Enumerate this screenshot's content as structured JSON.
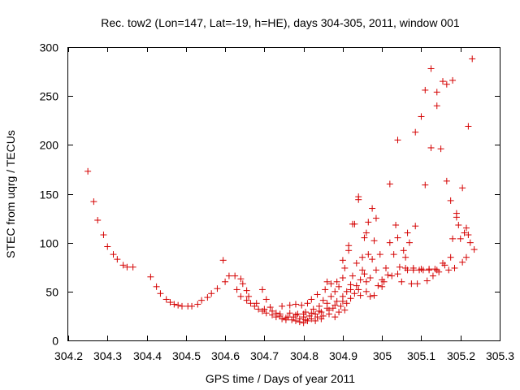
{
  "chart_data": {
    "type": "scatter",
    "title": "Rec. tow2 (Lon=147, Lat=-19, h=HE), days 304-305, 2011, window 001",
    "xlabel": "GPS time / Days of year 2011",
    "ylabel": "STEC from uqrg / TECUs",
    "xlim": [
      304.2,
      305.3
    ],
    "ylim": [
      0,
      300
    ],
    "xticks": [
      304.2,
      304.3,
      304.4,
      304.5,
      304.6,
      304.7,
      304.8,
      304.9,
      305,
      305.1,
      305.2,
      305.3
    ],
    "xtick_labels": [
      "304.2",
      "304.3",
      "304.4",
      "304.5",
      "304.6",
      "304.7",
      "304.8",
      "304.9",
      "305",
      "305.1",
      "305.2",
      "305.3"
    ],
    "yticks": [
      0,
      50,
      100,
      150,
      200,
      250,
      300
    ],
    "ytick_labels": [
      "0",
      "50",
      "100",
      "150",
      "200",
      "250",
      "300"
    ],
    "grid": false,
    "marker": "+",
    "marker_color": "#d40000",
    "points": [
      [
        304.25,
        173
      ],
      [
        304.265,
        142
      ],
      [
        304.275,
        123
      ],
      [
        304.29,
        108
      ],
      [
        304.3,
        96
      ],
      [
        304.315,
        88
      ],
      [
        304.325,
        83
      ],
      [
        304.34,
        77
      ],
      [
        304.35,
        75
      ],
      [
        304.365,
        75
      ],
      [
        304.41,
        65
      ],
      [
        304.425,
        55
      ],
      [
        304.435,
        48
      ],
      [
        304.45,
        42
      ],
      [
        304.46,
        39
      ],
      [
        304.47,
        37
      ],
      [
        304.48,
        36
      ],
      [
        304.49,
        35
      ],
      [
        304.505,
        35
      ],
      [
        304.515,
        35
      ],
      [
        304.53,
        37
      ],
      [
        304.54,
        41
      ],
      [
        304.555,
        44
      ],
      [
        304.565,
        48
      ],
      [
        304.58,
        53
      ],
      [
        304.595,
        82
      ],
      [
        304.6,
        60
      ],
      [
        304.61,
        66
      ],
      [
        304.625,
        66
      ],
      [
        304.63,
        52
      ],
      [
        304.64,
        63
      ],
      [
        304.645,
        58
      ],
      [
        304.655,
        51
      ],
      [
        304.64,
        45
      ],
      [
        304.655,
        41
      ],
      [
        304.665,
        38
      ],
      [
        304.675,
        35
      ],
      [
        304.685,
        32
      ],
      [
        304.695,
        30
      ],
      [
        304.695,
        52
      ],
      [
        304.705,
        28
      ],
      [
        304.705,
        42
      ],
      [
        304.715,
        34
      ],
      [
        304.72,
        26
      ],
      [
        304.73,
        24
      ],
      [
        304.73,
        28
      ],
      [
        304.74,
        25
      ],
      [
        304.745,
        22
      ],
      [
        304.745,
        35
      ],
      [
        304.755,
        23
      ],
      [
        304.755,
        21
      ],
      [
        304.765,
        36
      ],
      [
        304.765,
        28
      ],
      [
        304.77,
        21
      ],
      [
        304.775,
        24
      ],
      [
        304.78,
        20
      ],
      [
        304.78,
        37
      ],
      [
        304.785,
        27
      ],
      [
        304.79,
        19
      ],
      [
        304.79,
        22
      ],
      [
        304.795,
        36
      ],
      [
        304.8,
        18
      ],
      [
        304.8,
        24
      ],
      [
        304.805,
        21
      ],
      [
        304.805,
        29
      ],
      [
        304.81,
        38
      ],
      [
        304.81,
        20
      ],
      [
        304.815,
        25
      ],
      [
        304.82,
        22
      ],
      [
        304.82,
        42
      ],
      [
        304.825,
        32
      ],
      [
        304.83,
        27
      ],
      [
        304.83,
        20
      ],
      [
        304.835,
        24
      ],
      [
        304.835,
        47
      ],
      [
        304.84,
        35
      ],
      [
        304.845,
        29
      ],
      [
        304.845,
        22
      ],
      [
        304.85,
        41
      ],
      [
        304.85,
        25
      ],
      [
        304.855,
        52
      ],
      [
        304.86,
        60
      ],
      [
        304.86,
        38
      ],
      [
        304.865,
        31
      ],
      [
        304.865,
        27
      ],
      [
        304.87,
        45
      ],
      [
        304.87,
        58
      ],
      [
        304.875,
        33
      ],
      [
        304.88,
        24
      ],
      [
        304.88,
        50
      ],
      [
        304.885,
        40
      ],
      [
        304.885,
        60
      ],
      [
        304.89,
        29
      ],
      [
        304.89,
        55
      ],
      [
        304.895,
        35
      ],
      [
        304.9,
        64
      ],
      [
        304.9,
        45
      ],
      [
        304.9,
        82
      ],
      [
        304.905,
        31
      ],
      [
        304.905,
        74
      ],
      [
        304.91,
        50
      ],
      [
        304.91,
        38
      ],
      [
        304.915,
        92
      ],
      [
        304.915,
        97
      ],
      [
        304.92,
        43
      ],
      [
        304.92,
        57
      ],
      [
        304.925,
        66
      ],
      [
        304.925,
        119
      ],
      [
        304.93,
        119
      ],
      [
        304.93,
        48
      ],
      [
        304.935,
        79
      ],
      [
        304.935,
        56
      ],
      [
        304.94,
        144
      ],
      [
        304.94,
        147
      ],
      [
        304.945,
        62
      ],
      [
        304.945,
        46
      ],
      [
        304.95,
        85
      ],
      [
        304.95,
        72
      ],
      [
        304.955,
        105
      ],
      [
        304.955,
        68
      ],
      [
        304.96,
        50
      ],
      [
        304.96,
        110
      ],
      [
        304.965,
        88
      ],
      [
        304.965,
        121
      ],
      [
        304.97,
        45
      ],
      [
        304.97,
        64
      ],
      [
        304.975,
        135
      ],
      [
        304.975,
        83
      ],
      [
        304.98,
        102
      ],
      [
        304.98,
        46
      ],
      [
        304.985,
        72
      ],
      [
        304.985,
        125
      ],
      [
        304.99,
        56
      ],
      [
        304.995,
        88
      ],
      [
        305.0,
        62
      ],
      [
        305.005,
        60
      ],
      [
        305.01,
        74
      ],
      [
        305.015,
        67
      ],
      [
        305.02,
        160
      ],
      [
        305.02,
        100
      ],
      [
        305.025,
        66
      ],
      [
        305.03,
        88
      ],
      [
        305.035,
        118
      ],
      [
        305.04,
        205
      ],
      [
        305.04,
        105
      ],
      [
        305.045,
        75
      ],
      [
        305.05,
        60
      ],
      [
        305.055,
        92
      ],
      [
        305.06,
        85
      ],
      [
        305.065,
        72
      ],
      [
        305.065,
        110
      ],
      [
        305.07,
        100
      ],
      [
        305.075,
        58
      ],
      [
        305.08,
        72
      ],
      [
        305.085,
        213
      ],
      [
        305.085,
        117
      ],
      [
        305.09,
        58
      ],
      [
        305.095,
        72
      ],
      [
        305.1,
        229
      ],
      [
        305.105,
        72
      ],
      [
        305.11,
        256
      ],
      [
        305.11,
        159
      ],
      [
        305.115,
        61
      ],
      [
        305.12,
        73
      ],
      [
        305.125,
        197
      ],
      [
        305.125,
        278
      ],
      [
        305.13,
        66
      ],
      [
        305.135,
        73
      ],
      [
        305.14,
        240
      ],
      [
        305.14,
        254
      ],
      [
        305.145,
        70
      ],
      [
        305.15,
        196
      ],
      [
        305.155,
        265
      ],
      [
        305.155,
        79
      ],
      [
        305.16,
        77
      ],
      [
        305.165,
        163
      ],
      [
        305.165,
        262
      ],
      [
        305.17,
        72
      ],
      [
        305.175,
        143
      ],
      [
        305.175,
        85
      ],
      [
        305.18,
        266
      ],
      [
        305.18,
        104
      ],
      [
        305.185,
        74
      ],
      [
        305.19,
        130
      ],
      [
        305.19,
        126
      ],
      [
        305.195,
        118
      ],
      [
        305.2,
        104
      ],
      [
        305.205,
        156
      ],
      [
        305.205,
        80
      ],
      [
        305.21,
        110
      ],
      [
        305.215,
        115
      ],
      [
        305.215,
        85
      ],
      [
        305.22,
        219
      ],
      [
        305.22,
        108
      ],
      [
        305.225,
        100
      ],
      [
        305.23,
        288
      ],
      [
        305.235,
        93
      ],
      [
        305.04,
        68
      ],
      [
        305.0,
        55
      ],
      [
        304.96,
        60
      ],
      [
        304.94,
        52
      ],
      [
        304.92,
        52
      ],
      [
        304.9,
        40
      ],
      [
        304.88,
        36
      ],
      [
        304.86,
        33
      ],
      [
        304.84,
        30
      ],
      [
        304.82,
        28
      ],
      [
        304.8,
        27
      ],
      [
        304.78,
        26
      ],
      [
        304.76,
        24
      ],
      [
        304.74,
        27
      ],
      [
        304.72,
        30
      ],
      [
        304.7,
        32
      ],
      [
        304.68,
        38
      ],
      [
        304.66,
        45
      ],
      [
        305.06,
        74
      ],
      [
        305.08,
        74
      ],
      [
        305.1,
        73
      ],
      [
        305.12,
        72
      ],
      [
        305.14,
        72
      ]
    ]
  }
}
